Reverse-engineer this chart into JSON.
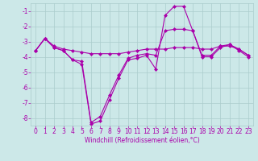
{
  "xlabel": "Windchill (Refroidissement éolien,°C)",
  "bg_color": "#cce8e8",
  "grid_color": "#aacccc",
  "line_color": "#aa00aa",
  "line1": [
    -3.6,
    -2.8,
    -3.3,
    -3.5,
    -3.6,
    -3.7,
    -3.8,
    -3.8,
    -3.8,
    -3.8,
    -3.7,
    -3.6,
    -3.5,
    -3.5,
    -3.5,
    -3.4,
    -3.4,
    -3.4,
    -3.5,
    -3.5,
    -3.3,
    -3.3,
    -3.5,
    -3.9
  ],
  "line2": [
    -3.6,
    -2.8,
    -3.4,
    -3.6,
    -4.2,
    -4.3,
    -8.3,
    -7.9,
    -6.5,
    -5.2,
    -4.1,
    -3.9,
    -3.8,
    -3.9,
    -2.3,
    -2.2,
    -2.2,
    -2.3,
    -3.9,
    -3.9,
    -3.3,
    -3.2,
    -3.5,
    -3.9
  ],
  "line3": [
    -3.6,
    -2.8,
    -3.4,
    -3.6,
    -4.2,
    -4.5,
    -8.4,
    -8.2,
    -6.8,
    -5.4,
    -4.2,
    -4.1,
    -3.9,
    -4.8,
    -1.3,
    -0.7,
    -0.7,
    -2.3,
    -4.0,
    -4.0,
    -3.4,
    -3.2,
    -3.6,
    -4.0
  ],
  "ylim": [
    -8.5,
    -0.5
  ],
  "xlim_min": -0.5,
  "xlim_max": 23.5,
  "yticks": [
    -8,
    -7,
    -6,
    -5,
    -4,
    -3,
    -2,
    -1
  ],
  "xticks": [
    0,
    1,
    2,
    3,
    4,
    5,
    6,
    7,
    8,
    9,
    10,
    11,
    12,
    13,
    14,
    15,
    16,
    17,
    18,
    19,
    20,
    21,
    22,
    23
  ],
  "tick_fontsize": 5.5,
  "xlabel_fontsize": 5.5,
  "lw": 0.8,
  "ms": 2.5
}
